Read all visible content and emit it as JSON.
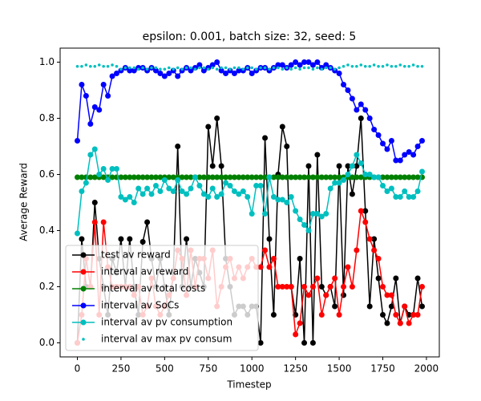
{
  "chart_data": {
    "type": "line",
    "title": "epsilon: 0.001, batch size: 32, seed: 5",
    "x_label": "Timestep",
    "y_label": "Average Reward",
    "x": [
      0,
      25,
      50,
      75,
      100,
      125,
      150,
      175,
      200,
      225,
      250,
      275,
      300,
      325,
      350,
      375,
      400,
      425,
      450,
      475,
      500,
      525,
      550,
      575,
      600,
      625,
      650,
      675,
      700,
      725,
      750,
      775,
      800,
      825,
      850,
      875,
      900,
      925,
      950,
      975,
      1000,
      1025,
      1050,
      1075,
      1100,
      1125,
      1150,
      1175,
      1200,
      1225,
      1250,
      1275,
      1300,
      1325,
      1350,
      1375,
      1400,
      1425,
      1450,
      1475,
      1500,
      1525,
      1550,
      1575,
      1600,
      1625,
      1650,
      1675,
      1700,
      1725,
      1750,
      1775,
      1800,
      1825,
      1850,
      1875,
      1900,
      1925,
      1950,
      1975
    ],
    "series": [
      {
        "name": "test av reward",
        "color": "#000000",
        "line": true,
        "values": [
          0.0,
          0.37,
          0.2,
          0.2,
          0.5,
          0.3,
          0.2,
          0.1,
          0.3,
          0.25,
          0.37,
          0.2,
          0.37,
          0.2,
          0.1,
          0.36,
          0.43,
          0.3,
          0.2,
          0.3,
          0.2,
          0.1,
          0.25,
          0.7,
          0.2,
          0.37,
          0.2,
          0.3,
          0.25,
          0.2,
          0.77,
          0.63,
          0.8,
          0.63,
          0.3,
          0.2,
          0.1,
          0.13,
          0.13,
          0.1,
          0.13,
          0.13,
          0.0,
          0.73,
          0.37,
          0.1,
          0.6,
          0.77,
          0.7,
          0.2,
          0.1,
          0.3,
          0.0,
          0.63,
          0.0,
          0.67,
          0.2,
          0.17,
          0.2,
          0.13,
          0.63,
          0.17,
          0.63,
          0.53,
          0.63,
          0.8,
          0.47,
          0.13,
          0.37,
          0.23,
          0.1,
          0.07,
          0.13,
          0.23,
          0.07,
          0.13,
          0.1,
          0.1,
          0.23,
          0.13
        ]
      },
      {
        "name": "interval av reward",
        "color": "#ff0000",
        "line": true,
        "values": [
          0.0,
          0.1,
          0.3,
          0.2,
          0.43,
          0.1,
          0.43,
          0.27,
          0.2,
          0.2,
          0.2,
          0.2,
          0.2,
          0.17,
          0.2,
          0.1,
          0.13,
          0.23,
          0.13,
          0.1,
          0.13,
          0.17,
          0.23,
          0.33,
          0.3,
          0.17,
          0.33,
          0.2,
          0.3,
          0.3,
          0.23,
          0.33,
          0.13,
          0.2,
          0.27,
          0.3,
          0.23,
          0.27,
          0.23,
          0.27,
          0.3,
          0.27,
          0.27,
          0.33,
          0.27,
          0.3,
          0.2,
          0.2,
          0.2,
          0.2,
          0.03,
          0.07,
          0.2,
          0.17,
          0.2,
          0.23,
          0.1,
          0.17,
          0.2,
          0.23,
          0.1,
          0.2,
          0.27,
          0.2,
          0.33,
          0.47,
          0.43,
          0.37,
          0.33,
          0.3,
          0.2,
          0.17,
          0.17,
          0.1,
          0.07,
          0.13,
          0.07,
          0.1,
          0.1,
          0.2
        ]
      },
      {
        "name": "interval av total costs",
        "color": "#008000",
        "line": true,
        "values": [
          0.59,
          0.59,
          0.59,
          0.59,
          0.59,
          0.59,
          0.59,
          0.59,
          0.59,
          0.59,
          0.59,
          0.59,
          0.59,
          0.59,
          0.59,
          0.59,
          0.59,
          0.59,
          0.59,
          0.59,
          0.59,
          0.59,
          0.59,
          0.59,
          0.59,
          0.59,
          0.59,
          0.59,
          0.59,
          0.59,
          0.59,
          0.59,
          0.59,
          0.59,
          0.59,
          0.59,
          0.59,
          0.59,
          0.59,
          0.59,
          0.59,
          0.59,
          0.59,
          0.59,
          0.59,
          0.59,
          0.59,
          0.59,
          0.59,
          0.59,
          0.59,
          0.59,
          0.59,
          0.59,
          0.59,
          0.59,
          0.59,
          0.59,
          0.59,
          0.59,
          0.59,
          0.59,
          0.59,
          0.59,
          0.59,
          0.59,
          0.59,
          0.59,
          0.59,
          0.59,
          0.59,
          0.59,
          0.59,
          0.59,
          0.59,
          0.59,
          0.59,
          0.59,
          0.59,
          0.59
        ]
      },
      {
        "name": "interval av SoCs",
        "color": "#0000ff",
        "line": true,
        "values": [
          0.72,
          0.92,
          0.88,
          0.78,
          0.84,
          0.83,
          0.92,
          0.88,
          0.95,
          0.96,
          0.97,
          0.98,
          0.97,
          0.97,
          0.98,
          0.98,
          0.97,
          0.98,
          0.97,
          0.96,
          0.95,
          0.96,
          0.97,
          0.95,
          0.97,
          0.98,
          0.97,
          0.98,
          0.99,
          0.97,
          0.98,
          0.99,
          1.0,
          0.97,
          0.96,
          0.97,
          0.96,
          0.97,
          0.97,
          0.98,
          0.96,
          0.97,
          0.98,
          0.98,
          0.97,
          0.98,
          0.99,
          0.99,
          0.98,
          0.99,
          1.0,
          0.99,
          1.0,
          1.0,
          0.99,
          1.0,
          0.98,
          0.99,
          0.98,
          0.97,
          0.96,
          0.92,
          0.9,
          0.87,
          0.83,
          0.85,
          0.83,
          0.8,
          0.76,
          0.74,
          0.71,
          0.69,
          0.72,
          0.65,
          0.65,
          0.67,
          0.68,
          0.67,
          0.7,
          0.72
        ]
      },
      {
        "name": "interval av pv consumption",
        "color": "#00bfbf",
        "line": true,
        "values": [
          0.39,
          0.54,
          0.57,
          0.67,
          0.69,
          0.6,
          0.62,
          0.58,
          0.62,
          0.62,
          0.52,
          0.51,
          0.52,
          0.5,
          0.55,
          0.53,
          0.55,
          0.53,
          0.56,
          0.54,
          0.58,
          0.55,
          0.54,
          0.58,
          0.54,
          0.53,
          0.55,
          0.59,
          0.56,
          0.53,
          0.52,
          0.55,
          0.52,
          0.53,
          0.57,
          0.56,
          0.54,
          0.53,
          0.54,
          0.52,
          0.46,
          0.56,
          0.56,
          0.46,
          0.59,
          0.52,
          0.51,
          0.51,
          0.5,
          0.52,
          0.47,
          0.44,
          0.42,
          0.4,
          0.46,
          0.46,
          0.45,
          0.46,
          0.55,
          0.57,
          0.57,
          0.58,
          0.6,
          0.63,
          0.67,
          0.64,
          0.6,
          0.6,
          0.59,
          0.59,
          0.56,
          0.54,
          0.55,
          0.52,
          0.52,
          0.54,
          0.52,
          0.52,
          0.54,
          0.61
        ]
      },
      {
        "name": "interval av max pv consum",
        "color": "#00bfbf",
        "line": false,
        "values": [
          0.985,
          0.985,
          0.99,
          0.985,
          0.985,
          0.99,
          0.985,
          0.985,
          0.99,
          0.985,
          0.975,
          0.98,
          0.98,
          0.98,
          0.975,
          0.98,
          0.975,
          0.98,
          0.98,
          0.975,
          0.975,
          0.98,
          0.975,
          0.98,
          0.975,
          0.98,
          0.98,
          0.975,
          0.98,
          0.98,
          0.975,
          0.98,
          0.975,
          0.98,
          0.98,
          0.975,
          0.98,
          0.98,
          0.975,
          0.98,
          0.98,
          0.975,
          0.98,
          0.98,
          0.975,
          0.98,
          0.98,
          0.975,
          0.98,
          0.975,
          0.98,
          0.975,
          0.98,
          0.98,
          0.975,
          0.98,
          0.975,
          0.98,
          0.98,
          0.975,
          0.98,
          0.985,
          0.99,
          0.985,
          0.985,
          0.99,
          0.985,
          0.985,
          0.99,
          0.985,
          0.985,
          0.99,
          0.985,
          0.985,
          0.99,
          0.985,
          0.985,
          0.99,
          0.985,
          0.985
        ]
      }
    ],
    "xlim": [
      -98.75,
      2073.75
    ],
    "ylim": [
      -0.05,
      1.05
    ],
    "xticks": [
      0,
      250,
      500,
      750,
      1000,
      1250,
      1500,
      1750,
      2000
    ],
    "yticks": [
      {
        "value": 0,
        "label": "0.0"
      },
      0.2,
      0.4,
      0.6,
      0.8,
      {
        "value": 1,
        "label": "1.0"
      }
    ],
    "legend": "lower left",
    "grid": false
  }
}
